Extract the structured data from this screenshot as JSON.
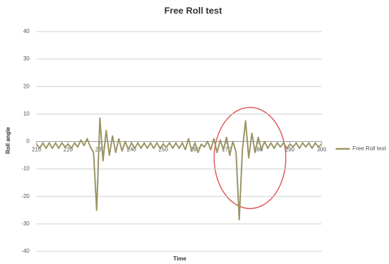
{
  "chart_data": {
    "type": "line",
    "title": "Free Roll test",
    "xlabel": "Time",
    "ylabel": "Roll angle",
    "x": [
      210,
      211,
      212,
      213,
      214,
      215,
      216,
      217,
      218,
      219,
      220,
      221,
      222,
      223,
      224,
      225,
      226,
      227,
      228,
      229,
      230,
      231,
      232,
      233,
      234,
      235,
      236,
      237,
      238,
      239,
      240,
      241,
      242,
      243,
      244,
      245,
      246,
      247,
      248,
      249,
      250,
      251,
      252,
      253,
      254,
      255,
      256,
      257,
      258,
      259,
      260,
      261,
      262,
      263,
      264,
      265,
      266,
      267,
      268,
      269,
      270,
      271,
      272,
      273,
      274,
      275,
      276,
      277,
      278,
      279,
      280,
      281,
      282,
      283,
      284,
      285,
      286,
      287,
      288,
      289,
      290,
      291,
      292,
      293,
      294,
      295,
      296,
      297,
      298,
      299,
      300
    ],
    "series": [
      {
        "name": "Free Roll test",
        "color": "#9b9463",
        "values": [
          -1,
          -2.5,
          -0.5,
          -2.5,
          -0.5,
          -2.5,
          -0.5,
          -2.5,
          -0.5,
          -2,
          -1,
          -2.5,
          -0.5,
          -2,
          0.5,
          -1.5,
          1,
          -2,
          -4,
          -25,
          8.5,
          -7,
          4,
          -5,
          2,
          -4,
          1,
          -3.5,
          0,
          -3,
          -0.5,
          -2.5,
          -0.5,
          -2.5,
          -0.5,
          -2.5,
          -0.5,
          -2.5,
          -0.5,
          -2.5,
          -1,
          -2,
          -0.5,
          -2.5,
          -0.5,
          -2.5,
          -0.5,
          -3,
          1,
          -3.5,
          -0.5,
          -4,
          -1,
          -2,
          0,
          -3,
          1,
          -4,
          0.5,
          -3,
          1.5,
          -5,
          0,
          -4,
          -28.5,
          -3,
          7.5,
          -6,
          3,
          -4,
          1.5,
          -3,
          0,
          -2.5,
          -0.5,
          -2.5,
          -0.5,
          -2,
          -0.5,
          -2.5,
          -1,
          -2,
          -0.5,
          -2.5,
          -0.5,
          -2,
          -0.5,
          -2.5,
          -0.5,
          -2,
          -1
        ]
      }
    ],
    "xlim": [
      210,
      300
    ],
    "xticks": [
      210,
      220,
      230,
      240,
      250,
      260,
      270,
      280,
      290,
      300
    ],
    "ylim": [
      -40,
      40
    ],
    "yticks": [
      -40,
      -30,
      -20,
      -10,
      0,
      10,
      20,
      30,
      40
    ],
    "grid": true,
    "legend": "right"
  }
}
